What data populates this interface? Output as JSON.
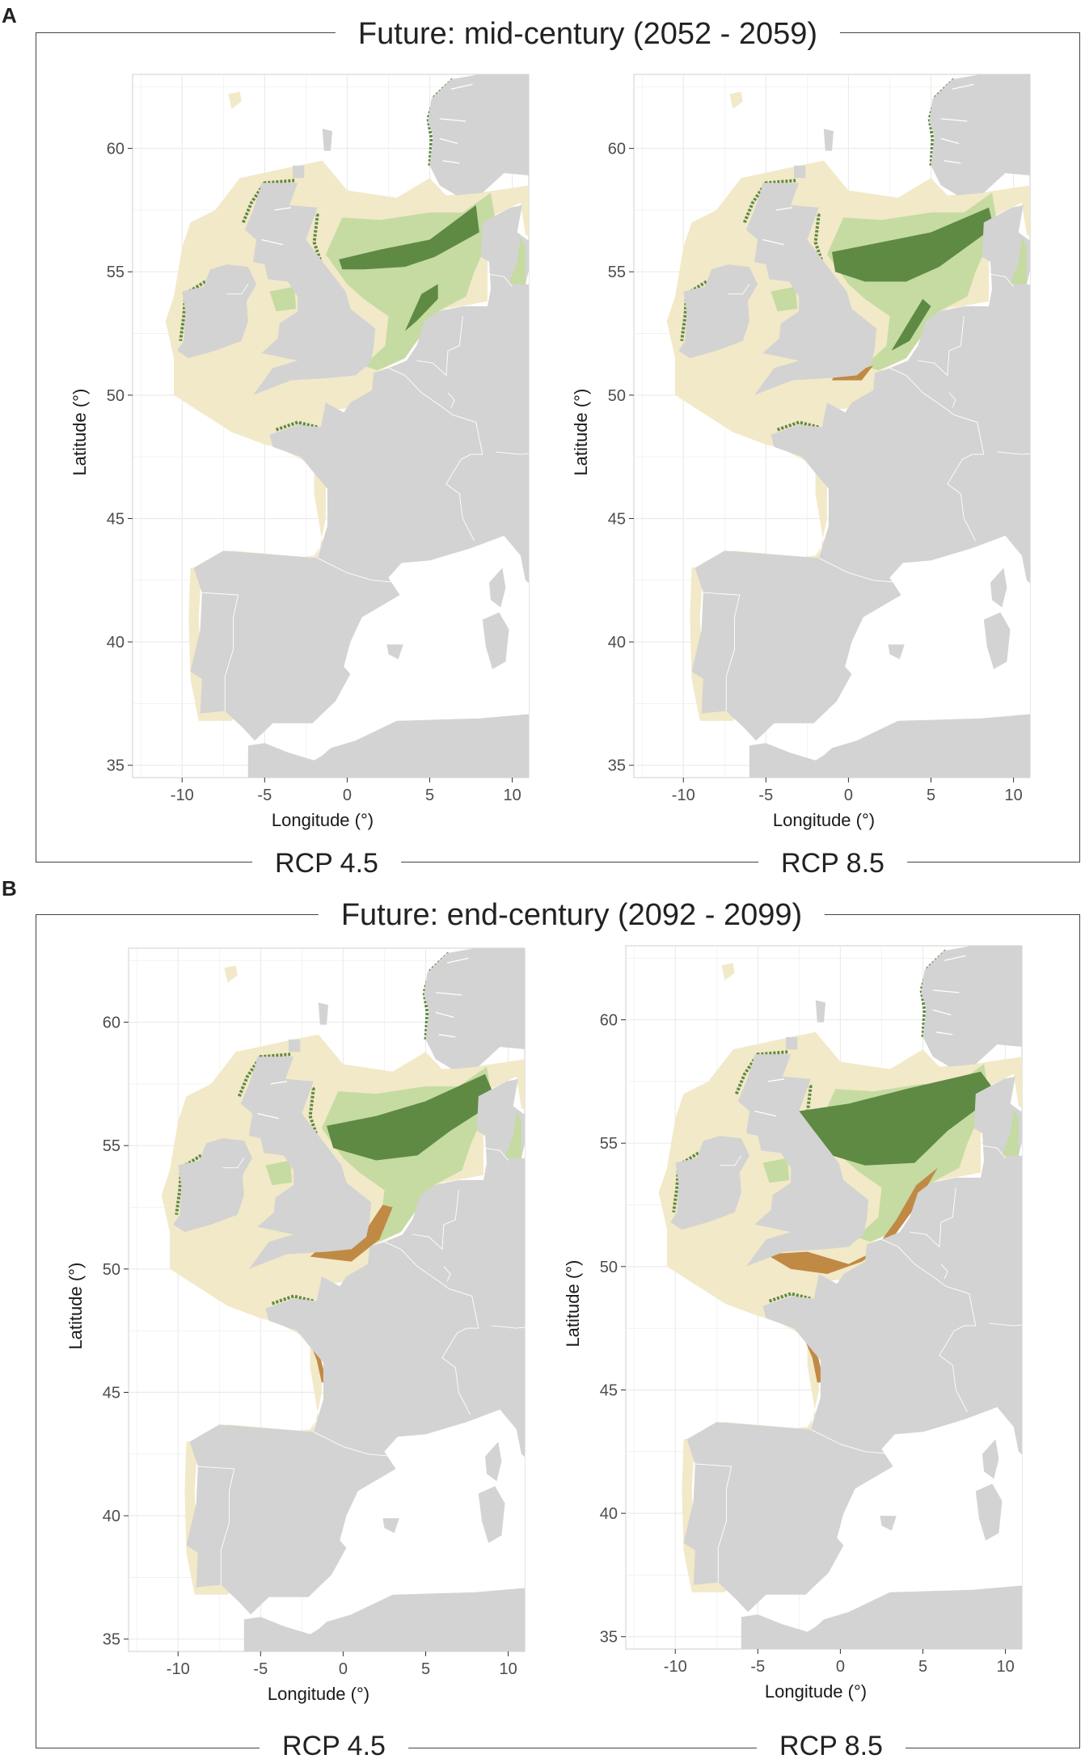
{
  "panels": [
    {
      "letter": "A",
      "title": "Future: mid-century (2052 - 2059)",
      "maps": [
        {
          "scenario": "RCP 4.5",
          "xlabel": "Longitude (°)",
          "ylabel": "Latitude (°)",
          "xticks": [
            "-10",
            "-5",
            "0",
            "5",
            "10"
          ],
          "yticks": [
            "35",
            "40",
            "45",
            "50",
            "55",
            "60"
          ]
        },
        {
          "scenario": "RCP 8.5",
          "xlabel": "Longitude (°)",
          "ylabel": "Latitude (°)",
          "xticks": [
            "-10",
            "-5",
            "0",
            "5",
            "10"
          ],
          "yticks": [
            "35",
            "40",
            "45",
            "50",
            "55",
            "60"
          ]
        }
      ]
    },
    {
      "letter": "B",
      "title": "Future: end-century (2092 - 2099)",
      "maps": [
        {
          "scenario": "RCP 4.5",
          "xlabel": "Longitude (°)",
          "ylabel": "Latitude (°)",
          "xticks": [
            "-10",
            "-5",
            "0",
            "5",
            "10"
          ],
          "yticks": [
            "35",
            "40",
            "45",
            "50",
            "55",
            "60"
          ]
        },
        {
          "scenario": "RCP 8.5",
          "xlabel": "Longitude (°)",
          "ylabel": "Latitude (°)",
          "xticks": [
            "-10",
            "-5",
            "0",
            "5",
            "10"
          ],
          "yticks": [
            "35",
            "40",
            "45",
            "50",
            "55",
            "60"
          ]
        }
      ]
    }
  ],
  "map_extent": {
    "lon": [
      -13,
      11
    ],
    "lat": [
      34.5,
      63
    ]
  },
  "colors": {
    "land": "#d3d3d3",
    "sea_background": "#ffffff",
    "grid": "#ebebeb",
    "unsuitable_sea": "#f2e9c8",
    "light_green": "#c5dba2",
    "dark_green": "#5e8a44",
    "brown": "#c08a45"
  }
}
